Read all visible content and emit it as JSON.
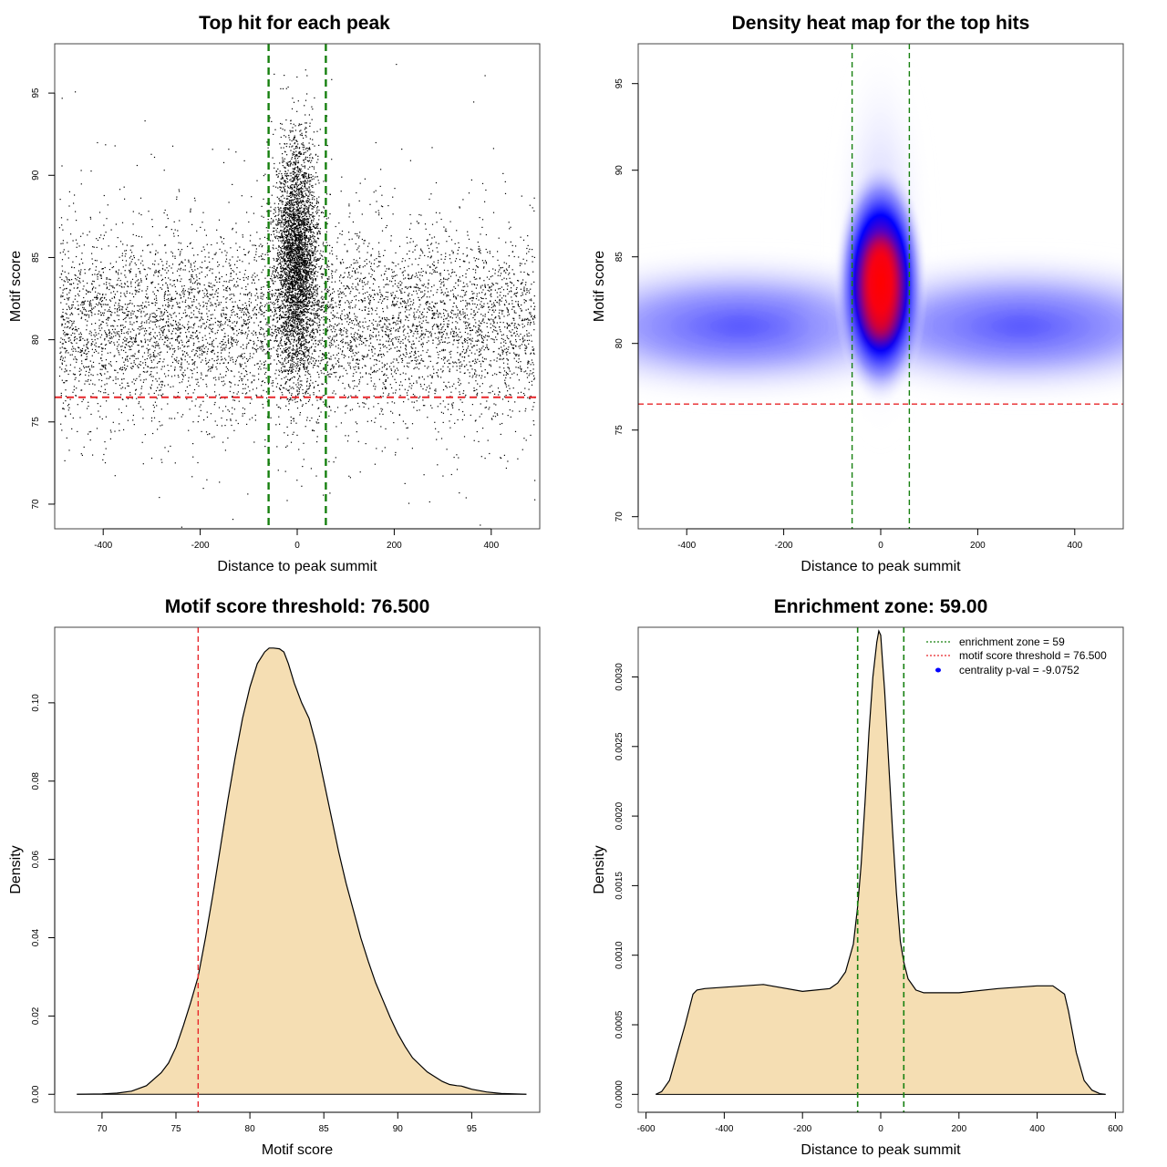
{
  "chart_data": [
    {
      "type": "scatter",
      "title": "Top hit for each peak",
      "xlabel": "Distance to peak summit",
      "ylabel": "Motif score",
      "xlim": [
        -500,
        500
      ],
      "ylim": [
        68.5,
        98
      ],
      "xticks": [
        -400,
        -200,
        0,
        200,
        400
      ],
      "yticks": [
        70,
        75,
        80,
        85,
        90,
        95
      ],
      "score_threshold": 76.5,
      "enrichment_zone": [
        -59,
        59
      ],
      "points_description_central": {
        "x_center": 0,
        "x_spread_sd": 22,
        "y_mean": 85,
        "y_sd": 3.5
      },
      "points_description_background": {
        "x_range": [
          -490,
          490
        ],
        "y_mean": 81,
        "y_sd": 2.8
      },
      "colors": {
        "points": "#000000",
        "threshold": "#e8262a",
        "zone": "#16800f"
      }
    },
    {
      "type": "heatmap",
      "title": "Density heat map for the top hits",
      "xlabel": "Distance to peak summit",
      "ylabel": "Motif score",
      "xlim": [
        -500,
        500
      ],
      "ylim": [
        69.3,
        97.3
      ],
      "xticks": [
        -400,
        -200,
        0,
        200,
        400
      ],
      "yticks": [
        70,
        75,
        80,
        85,
        90,
        95
      ],
      "score_threshold": 76.5,
      "enrichment_zone": [
        -59,
        59
      ],
      "density_peak": {
        "x": 0,
        "y": 83.5
      },
      "colors": {
        "low": "#ffffff",
        "mid": "#0000ff",
        "high": "#ff0000",
        "threshold": "#e8262a",
        "zone": "#16800f"
      }
    },
    {
      "type": "area",
      "title": "Motif score threshold: 76.500",
      "xlabel": "Motif score",
      "ylabel": "Density",
      "xlim": [
        66.8,
        99.6
      ],
      "ylim": [
        -0.0046,
        0.1193
      ],
      "xticks": [
        70,
        75,
        80,
        85,
        90,
        95
      ],
      "yticks": [
        0.0,
        0.02,
        0.04,
        0.06,
        0.08,
        0.1
      ],
      "ytick_labels": [
        "0.00",
        "0.02",
        "0.04",
        "0.06",
        "0.08",
        "0.10"
      ],
      "threshold": 76.5,
      "x": [
        68.3,
        70,
        71,
        72,
        73,
        74,
        74.5,
        75,
        75.5,
        76,
        76.5,
        77,
        77.5,
        78,
        78.5,
        79,
        79.5,
        80,
        80.5,
        81,
        81.3,
        81.6,
        82,
        82.3,
        82.6,
        83,
        83.5,
        84,
        84.5,
        85,
        85.5,
        86,
        86.5,
        87,
        87.5,
        88,
        88.5,
        89,
        89.5,
        90,
        90.5,
        91,
        92,
        93,
        93.5,
        94,
        94.3,
        95,
        96,
        97,
        98.7
      ],
      "y": [
        0.0,
        0.0001,
        0.0003,
        0.0008,
        0.0022,
        0.0055,
        0.008,
        0.012,
        0.0175,
        0.0235,
        0.03,
        0.04,
        0.051,
        0.063,
        0.075,
        0.086,
        0.096,
        0.104,
        0.11,
        0.113,
        0.114,
        0.114,
        0.1138,
        0.113,
        0.11,
        0.105,
        0.1,
        0.096,
        0.089,
        0.08,
        0.071,
        0.062,
        0.054,
        0.047,
        0.04,
        0.034,
        0.0285,
        0.024,
        0.0195,
        0.0155,
        0.0122,
        0.0093,
        0.0057,
        0.0033,
        0.0025,
        0.0022,
        0.0021,
        0.0013,
        0.0006,
        0.0002,
        0.0
      ],
      "fill": "#f5deb3",
      "colors": {
        "threshold": "#e8262a",
        "line": "#000000"
      }
    },
    {
      "type": "area",
      "title": "Enrichment zone: 59.00",
      "xlabel": "Distance to peak summit",
      "ylabel": "Density",
      "xlim": [
        -620,
        620
      ],
      "ylim": [
        -0.000129,
        0.003357
      ],
      "xticks": [
        -600,
        -400,
        -200,
        0,
        200,
        400,
        600
      ],
      "yticks": [
        0.0,
        0.0005,
        0.001,
        0.0015,
        0.002,
        0.0025,
        0.003
      ],
      "ytick_labels": [
        "0.0000",
        "0.0005",
        "0.0010",
        "0.0015",
        "0.0020",
        "0.0025",
        "0.0030"
      ],
      "enrichment_zone": [
        -59,
        59
      ],
      "x": [
        -575,
        -560,
        -540,
        -520,
        -500,
        -480,
        -470,
        -450,
        -400,
        -300,
        -200,
        -130,
        -110,
        -90,
        -70,
        -59,
        -50,
        -40,
        -30,
        -20,
        -10,
        -5,
        0,
        5,
        10,
        20,
        30,
        40,
        50,
        59,
        70,
        90,
        110,
        200,
        300,
        400,
        440,
        470,
        480,
        500,
        520,
        540,
        560,
        575
      ],
      "y": [
        0.0,
        2e-05,
        0.0001,
        0.0003,
        0.0005,
        0.00072,
        0.00075,
        0.00076,
        0.00077,
        0.00079,
        0.00074,
        0.00076,
        0.0008,
        0.00088,
        0.00108,
        0.00135,
        0.00165,
        0.0021,
        0.0026,
        0.003,
        0.00325,
        0.00333,
        0.0033,
        0.0031,
        0.0029,
        0.0024,
        0.0019,
        0.00145,
        0.0011,
        0.00095,
        0.00083,
        0.00075,
        0.00073,
        0.00073,
        0.00076,
        0.00078,
        0.00078,
        0.00072,
        0.0006,
        0.0003,
        0.0001,
        3e-05,
        5e-06,
        0.0
      ],
      "fill": "#f5deb3",
      "colors": {
        "zone": "#16800f",
        "line": "#000000"
      },
      "legend": [
        {
          "label": "enrichment zone = 59",
          "style": "dotted",
          "color": "#16800f"
        },
        {
          "label": "motif score threshold = 76.500",
          "style": "dotted",
          "color": "#e8262a"
        },
        {
          "label": "centrality p-val = -9.0752",
          "style": "point",
          "color": "#0000ff"
        }
      ],
      "legend_position": "top-right"
    }
  ]
}
